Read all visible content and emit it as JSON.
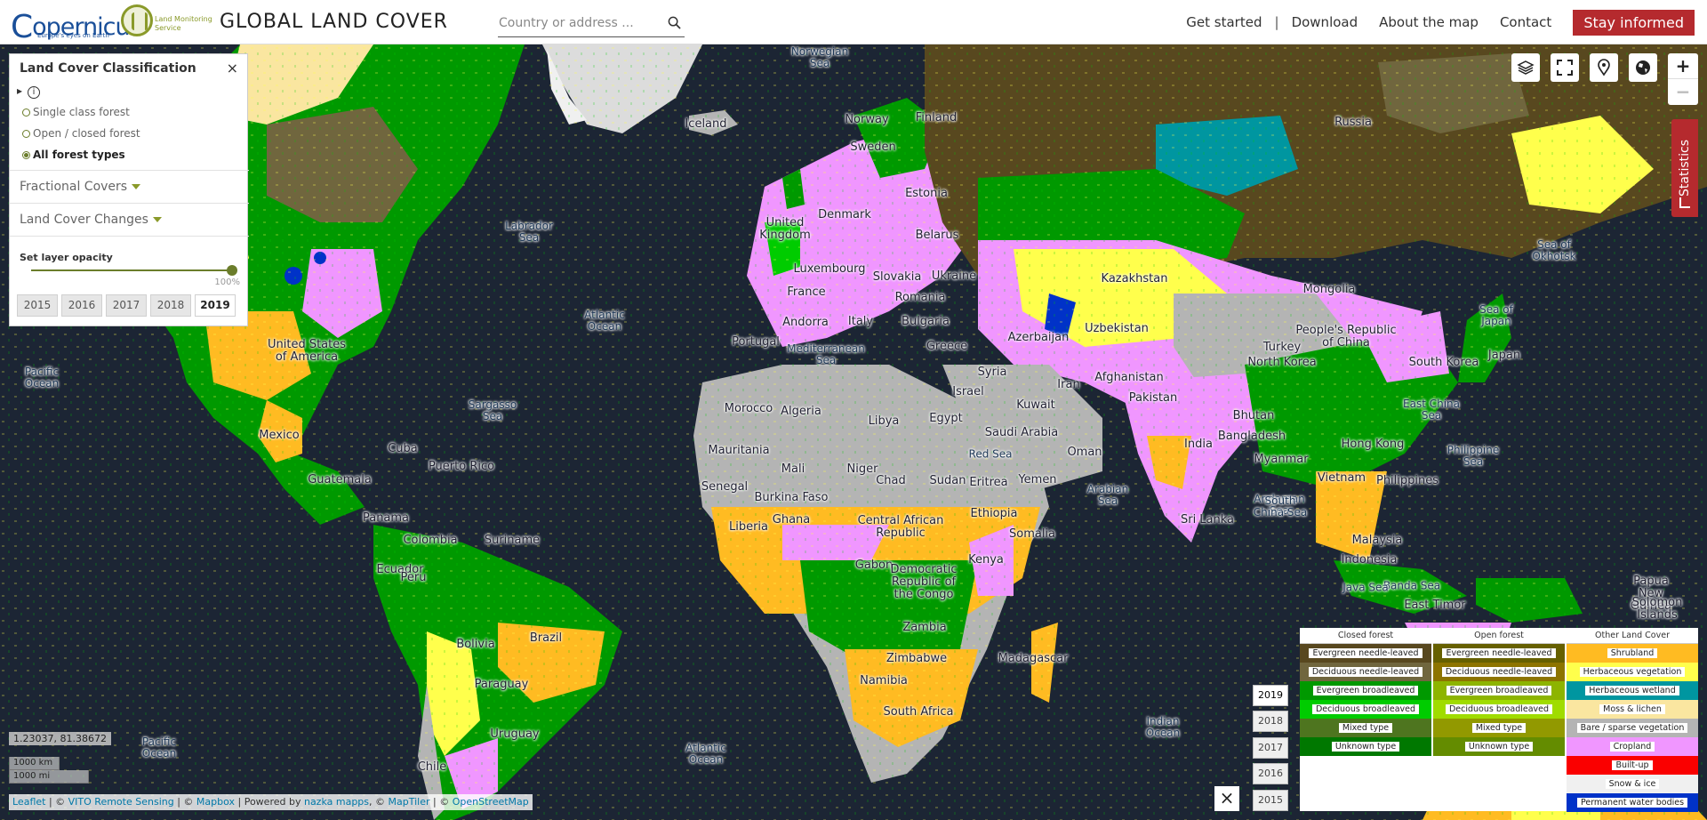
{
  "header": {
    "brand": "opernicus",
    "brand_tagline": "Europe's eyes on Earth",
    "service_line1": "Land Monitoring",
    "service_line2": "Service",
    "title": "GLOBAL LAND COVER",
    "search_placeholder": "Country or address ...",
    "nav": {
      "get_started": "Get started",
      "separator": "|",
      "download": "Download",
      "about": "About the map",
      "contact": "Contact",
      "stay_informed": "Stay informed"
    }
  },
  "panel": {
    "title": "Land Cover Classification",
    "close": "×",
    "info_icon": "i",
    "options": [
      "Single class forest",
      "Open / closed forest",
      "All forest types"
    ],
    "selected_option": "All forest types",
    "fractional": "Fractional Covers",
    "changes": "Land Cover Changes",
    "opacity_label": "Set layer opacity",
    "opacity_value": "100%",
    "opacity_fraction": 1.0,
    "years": [
      "2015",
      "2016",
      "2017",
      "2018",
      "2019"
    ],
    "selected_year": "2019"
  },
  "controls": {
    "icons": [
      "layers-icon",
      "fullscreen-icon",
      "location-pin-icon",
      "globe-icon"
    ],
    "zoom_in": "+",
    "zoom_out": "−",
    "statistics": "Statistics"
  },
  "legend": {
    "closed_forest": {
      "title": "Closed forest",
      "items": [
        {
          "label": "Evergreen needle-leaved",
          "color": "#58481f"
        },
        {
          "label": "Deciduous needle-leaved",
          "color": "#70663e"
        },
        {
          "label": "Evergreen broadleaved",
          "color": "#009900"
        },
        {
          "label": "Deciduous broadleaved",
          "color": "#00cc00"
        },
        {
          "label": "Mixed type",
          "color": "#4e751f"
        },
        {
          "label": "Unknown type",
          "color": "#007800"
        }
      ]
    },
    "open_forest": {
      "title": "Open forest",
      "items": [
        {
          "label": "Evergreen needle-leaved",
          "color": "#666000"
        },
        {
          "label": "Deciduous needle-leaved",
          "color": "#8d7400"
        },
        {
          "label": "Evergreen broadleaved",
          "color": "#8db400"
        },
        {
          "label": "Deciduous broadleaved",
          "color": "#a0dc00"
        },
        {
          "label": "Mixed type",
          "color": "#929900"
        },
        {
          "label": "Unknown type",
          "color": "#648c00"
        }
      ]
    },
    "other": {
      "title": "Other Land Cover",
      "items": [
        {
          "label": "Shrubland",
          "color": "#ffbb22"
        },
        {
          "label": "Herbaceous vegetation",
          "color": "#ffff4c"
        },
        {
          "label": "Herbaceous wetland",
          "color": "#0096a0"
        },
        {
          "label": "Moss & lichen",
          "color": "#fae6a0"
        },
        {
          "label": "Bare / sparse vegetation",
          "color": "#b4b4b4"
        },
        {
          "label": "Cropland",
          "color": "#f096ff"
        },
        {
          "label": "Built-up",
          "color": "#fa0000"
        },
        {
          "label": "Snow & ice",
          "color": "#f0f0f0"
        },
        {
          "label": "Permanent water bodies",
          "color": "#0032c8"
        }
      ]
    }
  },
  "timeline": {
    "years": [
      "2019",
      "2018",
      "2017",
      "2016",
      "2015"
    ],
    "selected": "2019",
    "close": "×"
  },
  "status": {
    "coords": "1.23037, 81.38672",
    "scale_km": "1000 km",
    "scale_mi": "1000 mi"
  },
  "attribution": {
    "leaflet": "Leaflet",
    "sep1": " | © ",
    "vito": "VITO Remote Sensing",
    "sep2": " | © ",
    "mapbox": "Mapbox",
    "sep3": " | Powered by ",
    "nazka": "nazka mapps",
    "sep4": ", © ",
    "maptiler": "MapTiler",
    "sep5": " | © ",
    "osm": "OpenStreetMap"
  },
  "places": [
    {
      "name": "Norwegian\nSea",
      "sea": true
    },
    {
      "name": "Iceland"
    },
    {
      "name": "Norway"
    },
    {
      "name": "Finland"
    },
    {
      "name": "Sweden"
    },
    {
      "name": "Russia"
    },
    {
      "name": "Estonia"
    },
    {
      "name": "Denmark"
    },
    {
      "name": "United\nKingdom"
    },
    {
      "name": "Belarus"
    },
    {
      "name": "Luxembourg"
    },
    {
      "name": "Slovakia"
    },
    {
      "name": "Ukraine"
    },
    {
      "name": "France"
    },
    {
      "name": "Romania"
    },
    {
      "name": "Kazakhstan"
    },
    {
      "name": "Mongolia"
    },
    {
      "name": "Sea of\nOkhotsk",
      "sea": true
    },
    {
      "name": "Labrador\nSea",
      "sea": true
    },
    {
      "name": "Andorra"
    },
    {
      "name": "Italy"
    },
    {
      "name": "Bulgaria"
    },
    {
      "name": "Uzbekistan"
    },
    {
      "name": "Azerbaijan"
    },
    {
      "name": "Sea of\nJapan",
      "sea": true
    },
    {
      "name": "Atlantic\nOcean",
      "sea": true
    },
    {
      "name": "Portugal"
    },
    {
      "name": "Mediterranean\nSea",
      "sea": true
    },
    {
      "name": "Greece"
    },
    {
      "name": "Turkey"
    },
    {
      "name": "People's Republic\nof China"
    },
    {
      "name": "North Korea"
    },
    {
      "name": "United States\nof America"
    },
    {
      "name": "South Korea"
    },
    {
      "name": "Japan"
    },
    {
      "name": "Syria"
    },
    {
      "name": "Afghanistan"
    },
    {
      "name": "Pacific\nOcean",
      "sea": true
    },
    {
      "name": "Iran"
    },
    {
      "name": "Israel"
    },
    {
      "name": "Pakistan"
    },
    {
      "name": "Morocco"
    },
    {
      "name": "Algeria"
    },
    {
      "name": "Libya"
    },
    {
      "name": "Egypt"
    },
    {
      "name": "Kuwait"
    },
    {
      "name": "Sargasso\nSea",
      "sea": true
    },
    {
      "name": "East China\nSea",
      "sea": true
    },
    {
      "name": "Bhutan"
    },
    {
      "name": "Bangladesh"
    },
    {
      "name": "Saudi Arabia"
    },
    {
      "name": "Mexico"
    },
    {
      "name": "India"
    },
    {
      "name": "Cuba"
    },
    {
      "name": "Hong Kong"
    },
    {
      "name": "Mauritania"
    },
    {
      "name": "Red Sea",
      "sea": true
    },
    {
      "name": "Oman"
    },
    {
      "name": "Philippine\nSea",
      "sea": true
    },
    {
      "name": "Myanmar"
    },
    {
      "name": "Puerto Rico"
    },
    {
      "name": "Mali"
    },
    {
      "name": "Niger"
    },
    {
      "name": "Guatemala"
    },
    {
      "name": "Chad"
    },
    {
      "name": "Sudan"
    },
    {
      "name": "Eritrea"
    },
    {
      "name": "Yemen"
    },
    {
      "name": "Vietnam"
    },
    {
      "name": "Philippines"
    },
    {
      "name": "Senegal"
    },
    {
      "name": "Arabian\nSea",
      "sea": true
    },
    {
      "name": "Burkina Faso"
    },
    {
      "name": "Andaman\nSea",
      "sea": true
    },
    {
      "name": "South\nChina Sea",
      "sea": true
    },
    {
      "name": "Ethiopia"
    },
    {
      "name": "Panama"
    },
    {
      "name": "Sri Lanka"
    },
    {
      "name": "Central African\nRepublic"
    },
    {
      "name": "Liberia"
    },
    {
      "name": "Ghana"
    },
    {
      "name": "Somalia"
    },
    {
      "name": "Colombia"
    },
    {
      "name": "Suriname"
    },
    {
      "name": "Malaysia"
    },
    {
      "name": "Indonesia"
    },
    {
      "name": "Ecuador"
    },
    {
      "name": "Gabon"
    },
    {
      "name": "Democratic\nRepublic of\nthe Congo"
    },
    {
      "name": "Kenya"
    },
    {
      "name": "Banda Sea",
      "sea": true
    },
    {
      "name": "Java Sea",
      "sea": true
    },
    {
      "name": "Papua New\nGuinea"
    },
    {
      "name": "Solomon\nIslands"
    },
    {
      "name": "Peru"
    },
    {
      "name": "East Timor"
    },
    {
      "name": "Zambia"
    },
    {
      "name": "Brazil"
    },
    {
      "name": "Bolivia"
    },
    {
      "name": "Zimbabwe"
    },
    {
      "name": "Madagascar"
    },
    {
      "name": "Paraguay"
    },
    {
      "name": "Namibia"
    },
    {
      "name": "South Africa"
    },
    {
      "name": "Indian\nOcean",
      "sea": true
    },
    {
      "name": "Uruguay"
    },
    {
      "name": "Pacific\nOcean",
      "sea": true
    },
    {
      "name": "Atlantic\nOcean",
      "sea": true
    },
    {
      "name": "Chile"
    }
  ]
}
